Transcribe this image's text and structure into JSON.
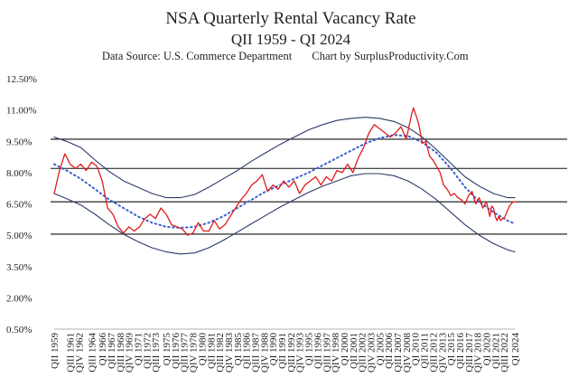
{
  "chart_data": {
    "type": "line",
    "title": "NSA Quarterly Rental Vacancy Rate",
    "subtitle": "QII 1959 - QI 2024",
    "source_note": "Data Source: U.S. Commerce Department",
    "credit": "Chart by SurplusProductivity.Com",
    "xlabel": "",
    "ylabel": "",
    "ylim": [
      0.5,
      12.5
    ],
    "yticks": [
      "12.50%",
      "11.00%",
      "9.50%",
      "8.00%",
      "6.50%",
      "5.00%",
      "3.50%",
      "2.00%",
      "0.50%"
    ],
    "ytick_values": [
      12.5,
      11.0,
      9.5,
      8.0,
      6.5,
      5.0,
      3.5,
      2.0,
      0.5
    ],
    "xlim": [
      1959.25,
      2024.0
    ],
    "xticks": [
      "QII 1959",
      "QIII 1961",
      "QIV 1962",
      "QIII 1964",
      "QI 1966",
      "QII 1967",
      "QIII 1968",
      "QIV 1969",
      "QI 1971",
      "QII 1972",
      "QIII 1973",
      "QI 1975",
      "QII 1976",
      "QIII 1977",
      "QIV 1978",
      "QI 1980",
      "QII 1981",
      "QIII 1982",
      "QIV 1983",
      "QI 1985",
      "QII 1986",
      "QIII 1987",
      "QIV 1988",
      "QI 1990",
      "QII 1991",
      "QIII 1992",
      "QIV 1993",
      "QI 1995",
      "QII 1996",
      "QIII 1997",
      "QIV 1998",
      "QI 2000",
      "QII 2001",
      "QIII 2002",
      "QIV 2003",
      "QI 2005",
      "QII 2006",
      "QIII 2007",
      "QIV 2008",
      "QI 2010",
      "QII 2011",
      "QIII 2012",
      "QIV 2013",
      "QI 2015",
      "QII 2016",
      "QIII 2017",
      "QIV 2018",
      "QI 2020",
      "QII 2021",
      "QIII 2022",
      "QI 2024"
    ],
    "xtick_years": [
      1959.25,
      1961.5,
      1962.75,
      1964.5,
      1966.0,
      1967.25,
      1968.5,
      1969.75,
      1971.0,
      1972.25,
      1973.5,
      1975.0,
      1976.25,
      1977.5,
      1978.75,
      1980.0,
      1981.25,
      1982.5,
      1983.75,
      1985.0,
      1986.25,
      1987.5,
      1988.75,
      1990.0,
      1991.25,
      1992.5,
      1993.75,
      1995.0,
      1996.25,
      1997.5,
      1998.75,
      2000.0,
      2001.25,
      2002.5,
      2003.75,
      2005.0,
      2006.25,
      2007.5,
      2008.75,
      2010.0,
      2011.25,
      2012.5,
      2013.75,
      2015.0,
      2016.25,
      2017.5,
      2018.75,
      2020.0,
      2021.25,
      2022.5,
      2024.0
    ],
    "horizontal_lines": [
      9.6,
      8.2,
      6.6,
      5.05
    ],
    "series": [
      {
        "color": "#e01b1b",
        "style": "solid",
        "x": [
          1959.25,
          1960.0,
          1960.75,
          1961.5,
          1962.25,
          1963.0,
          1963.75,
          1964.5,
          1965.25,
          1966.0,
          1966.75,
          1967.5,
          1968.25,
          1969.0,
          1969.75,
          1970.5,
          1971.25,
          1972.0,
          1972.75,
          1973.5,
          1974.25,
          1975.0,
          1975.75,
          1976.5,
          1977.25,
          1978.0,
          1978.75,
          1979.5,
          1980.25,
          1981.0,
          1981.75,
          1982.5,
          1983.25,
          1984.0,
          1984.75,
          1985.5,
          1986.25,
          1987.0,
          1987.75,
          1988.5,
          1989.25,
          1990.0,
          1990.75,
          1991.5,
          1992.25,
          1993.0,
          1993.75,
          1994.5,
          1995.25,
          1996.0,
          1996.75,
          1997.5,
          1998.25,
          1999.0,
          1999.75,
          2000.5,
          2001.25,
          2002.0,
          2002.75,
          2003.5,
          2004.25,
          2005.0,
          2005.75,
          2006.5,
          2007.25,
          2008.0,
          2008.75,
          2009.25,
          2009.5,
          2009.75,
          2010.25,
          2010.5,
          2011.0,
          2011.5,
          2012.0,
          2012.5,
          2013.0,
          2013.5,
          2014.0,
          2014.5,
          2015.0,
          2015.5,
          2016.0,
          2016.5,
          2017.0,
          2017.5,
          2018.0,
          2018.5,
          2019.0,
          2019.5,
          2020.0,
          2020.5,
          2020.75,
          2021.0,
          2021.25,
          2021.5,
          2021.75,
          2022.0,
          2022.25,
          2022.5,
          2022.75,
          2023.0,
          2023.25,
          2023.5,
          2023.75,
          2024.0
        ],
        "values": [
          7.0,
          8.1,
          8.9,
          8.4,
          8.2,
          8.4,
          8.1,
          8.5,
          8.3,
          7.6,
          6.3,
          6.0,
          5.4,
          5.1,
          5.4,
          5.2,
          5.4,
          5.8,
          6.0,
          5.8,
          6.3,
          6.0,
          5.5,
          5.4,
          5.3,
          5.0,
          5.1,
          5.6,
          5.2,
          5.2,
          5.7,
          5.3,
          5.5,
          5.9,
          6.3,
          6.7,
          7.0,
          7.4,
          7.6,
          7.9,
          7.1,
          7.4,
          7.2,
          7.6,
          7.3,
          7.6,
          7.0,
          7.4,
          7.6,
          7.8,
          7.4,
          7.8,
          7.6,
          8.1,
          8.0,
          8.4,
          8.0,
          8.7,
          9.2,
          9.9,
          10.3,
          10.1,
          9.9,
          9.7,
          9.9,
          10.2,
          9.6,
          10.4,
          10.8,
          11.1,
          10.6,
          10.3,
          9.4,
          9.5,
          8.8,
          8.6,
          8.3,
          8.0,
          7.4,
          7.2,
          6.9,
          7.0,
          6.8,
          6.7,
          6.5,
          6.9,
          7.1,
          6.5,
          6.8,
          6.3,
          6.6,
          5.9,
          6.4,
          6.3,
          5.9,
          5.7,
          5.9,
          5.7,
          5.8,
          5.8,
          6.0,
          6.2,
          6.4,
          6.5,
          6.6,
          6.6
        ]
      },
      {
        "color": "#3a5fd0",
        "style": "dotted",
        "x": [
          1959.25,
          1961.0,
          1963.0,
          1965.0,
          1967.0,
          1969.0,
          1971.0,
          1973.0,
          1975.0,
          1977.0,
          1979.0,
          1981.0,
          1983.0,
          1985.0,
          1987.0,
          1989.0,
          1991.0,
          1993.0,
          1995.0,
          1997.0,
          1999.0,
          2001.0,
          2003.0,
          2005.0,
          2007.0,
          2009.0,
          2011.0,
          2013.0,
          2015.0,
          2017.0,
          2019.0,
          2021.0,
          2023.0,
          2024.0
        ],
        "values": [
          8.4,
          8.1,
          7.7,
          7.2,
          6.7,
          6.3,
          5.9,
          5.6,
          5.4,
          5.35,
          5.4,
          5.6,
          5.9,
          6.3,
          6.7,
          7.1,
          7.4,
          7.7,
          8.0,
          8.35,
          8.7,
          9.05,
          9.4,
          9.65,
          9.8,
          9.75,
          9.45,
          8.95,
          8.2,
          7.3,
          6.6,
          6.1,
          5.7,
          5.55
        ]
      },
      {
        "color": "#2b3a67",
        "style": "solid",
        "x": [
          1959.25,
          1961.0,
          1963.0,
          1965.0,
          1967.0,
          1969.0,
          1971.0,
          1973.0,
          1975.0,
          1977.0,
          1979.0,
          1981.0,
          1983.0,
          1985.0,
          1987.0,
          1989.0,
          1991.0,
          1993.0,
          1995.0,
          1997.0,
          1999.0,
          2001.0,
          2003.0,
          2005.0,
          2007.0,
          2009.0,
          2011.0,
          2013.0,
          2015.0,
          2017.0,
          2019.0,
          2021.0,
          2023.0,
          2024.0
        ],
        "values": [
          9.7,
          9.5,
          9.2,
          8.6,
          8.05,
          7.6,
          7.3,
          7.0,
          6.8,
          6.8,
          6.95,
          7.3,
          7.7,
          8.1,
          8.55,
          8.95,
          9.35,
          9.7,
          10.05,
          10.3,
          10.5,
          10.6,
          10.65,
          10.6,
          10.45,
          10.15,
          9.7,
          9.1,
          8.45,
          7.8,
          7.35,
          7.0,
          6.8,
          6.8
        ]
      },
      {
        "color": "#2b3a67",
        "style": "solid",
        "x": [
          1959.25,
          1961.0,
          1963.0,
          1965.0,
          1967.0,
          1969.0,
          1971.0,
          1973.0,
          1975.0,
          1977.0,
          1979.0,
          1981.0,
          1983.0,
          1985.0,
          1987.0,
          1989.0,
          1991.0,
          1993.0,
          1995.0,
          1997.0,
          1999.0,
          2001.0,
          2003.0,
          2005.0,
          2007.0,
          2009.0,
          2011.0,
          2013.0,
          2015.0,
          2017.0,
          2019.0,
          2021.0,
          2023.0,
          2024.0
        ],
        "values": [
          7.0,
          6.75,
          6.45,
          6.0,
          5.5,
          5.05,
          4.7,
          4.4,
          4.2,
          4.1,
          4.15,
          4.4,
          4.75,
          5.15,
          5.55,
          5.95,
          6.35,
          6.7,
          7.05,
          7.35,
          7.6,
          7.85,
          7.95,
          7.95,
          7.85,
          7.6,
          7.2,
          6.7,
          6.1,
          5.5,
          5.0,
          4.6,
          4.3,
          4.2
        ]
      }
    ]
  }
}
